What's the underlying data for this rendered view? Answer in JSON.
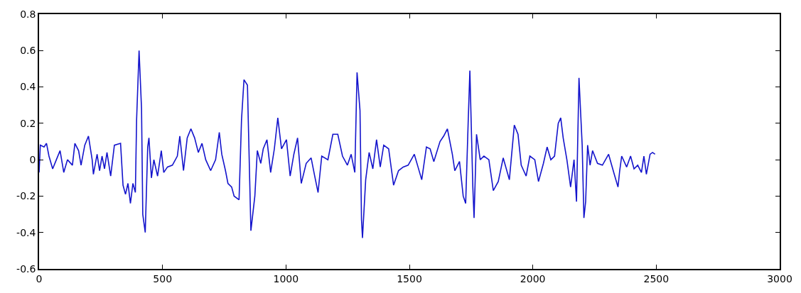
{
  "chart_data": {
    "type": "line",
    "xlim": [
      0,
      3000
    ],
    "xticks": [
      0,
      500,
      1000,
      1500,
      2000,
      2500,
      3000
    ],
    "ylim": [
      -0.6,
      0.8
    ],
    "yticks": [
      -0.6,
      -0.4,
      -0.2,
      0,
      0.2,
      0.4,
      0.6,
      0.8
    ],
    "series": [
      {
        "color": "#1414cc",
        "x": [
          0,
          5,
          20,
          30,
          40,
          55,
          70,
          85,
          100,
          115,
          135,
          145,
          160,
          170,
          185,
          200,
          215,
          220,
          235,
          245,
          255,
          265,
          275,
          290,
          305,
          330,
          340,
          350,
          360,
          370,
          380,
          390,
          395,
          405,
          415,
          420,
          430,
          440,
          445,
          455,
          465,
          480,
          495,
          505,
          520,
          540,
          560,
          570,
          585,
          600,
          615,
          630,
          645,
          660,
          675,
          695,
          715,
          730,
          740,
          755,
          765,
          780,
          790,
          810,
          820,
          830,
          844,
          858,
          874,
          884,
          898,
          908,
          923,
          938,
          953,
          967,
          982,
          1002,
          1017,
          1032,
          1047,
          1062,
          1082,
          1102,
          1115,
          1130,
          1145,
          1170,
          1190,
          1210,
          1229,
          1249,
          1264,
          1279,
          1288,
          1300,
          1306,
          1310,
          1323,
          1337,
          1352,
          1367,
          1382,
          1396,
          1416,
          1436,
          1456,
          1475,
          1495,
          1520,
          1535,
          1550,
          1569,
          1584,
          1599,
          1624,
          1639,
          1654,
          1674,
          1684,
          1703,
          1718,
          1728,
          1738,
          1745,
          1757,
          1762,
          1772,
          1787,
          1802,
          1822,
          1840,
          1860,
          1880,
          1905,
          1925,
          1940,
          1953,
          1973,
          1988,
          2008,
          2023,
          2043,
          2058,
          2073,
          2088,
          2103,
          2113,
          2123,
          2138,
          2153,
          2167,
          2177,
          2187,
          2200,
          2207,
          2214,
          2222,
          2232,
          2242,
          2262,
          2282,
          2307,
          2330,
          2345,
          2352,
          2360,
          2380,
          2396,
          2410,
          2425,
          2440,
          2450,
          2460,
          2475,
          2485,
          2495
        ],
        "values": [
          -0.07,
          0.08,
          0.07,
          0.09,
          0.02,
          -0.05,
          0.0,
          0.05,
          -0.07,
          0.0,
          -0.03,
          0.09,
          0.05,
          -0.03,
          0.08,
          0.13,
          0.0,
          -0.08,
          0.03,
          -0.06,
          0.02,
          -0.05,
          0.04,
          -0.09,
          0.08,
          0.09,
          -0.14,
          -0.19,
          -0.13,
          -0.24,
          -0.13,
          -0.18,
          0.22,
          0.6,
          0.28,
          -0.3,
          -0.4,
          0.07,
          0.12,
          -0.1,
          0.0,
          -0.09,
          0.05,
          -0.07,
          -0.04,
          -0.03,
          0.02,
          0.13,
          -0.06,
          0.12,
          0.17,
          0.12,
          0.04,
          0.09,
          0.0,
          -0.06,
          0.0,
          0.15,
          0.03,
          -0.06,
          -0.13,
          -0.15,
          -0.2,
          -0.22,
          0.22,
          0.44,
          0.41,
          -0.39,
          -0.2,
          0.05,
          -0.02,
          0.06,
          0.11,
          -0.07,
          0.06,
          0.23,
          0.06,
          0.11,
          -0.09,
          0.03,
          0.12,
          -0.13,
          -0.02,
          0.01,
          -0.08,
          -0.18,
          0.02,
          0.0,
          0.14,
          0.14,
          0.02,
          -0.03,
          0.03,
          -0.07,
          0.48,
          0.27,
          -0.33,
          -0.43,
          -0.11,
          0.04,
          -0.05,
          0.11,
          -0.04,
          0.08,
          0.06,
          -0.14,
          -0.06,
          -0.04,
          -0.03,
          0.03,
          -0.04,
          -0.11,
          0.07,
          0.06,
          -0.01,
          0.1,
          0.13,
          0.17,
          0.03,
          -0.06,
          -0.01,
          -0.2,
          -0.24,
          0.2,
          0.49,
          -0.15,
          -0.32,
          0.14,
          0.0,
          0.02,
          0.0,
          -0.17,
          -0.12,
          0.01,
          -0.11,
          0.19,
          0.14,
          -0.03,
          -0.09,
          0.02,
          0.0,
          -0.12,
          -0.02,
          0.07,
          0.0,
          0.02,
          0.2,
          0.23,
          0.12,
          0.0,
          -0.15,
          0.0,
          -0.23,
          0.45,
          0.08,
          -0.32,
          -0.23,
          0.08,
          -0.03,
          0.05,
          -0.02,
          -0.03,
          0.03,
          -0.08,
          -0.15,
          -0.06,
          0.02,
          -0.04,
          0.02,
          -0.05,
          -0.03,
          -0.07,
          0.02,
          -0.08,
          0.03,
          0.04,
          0.03
        ]
      }
    ]
  }
}
